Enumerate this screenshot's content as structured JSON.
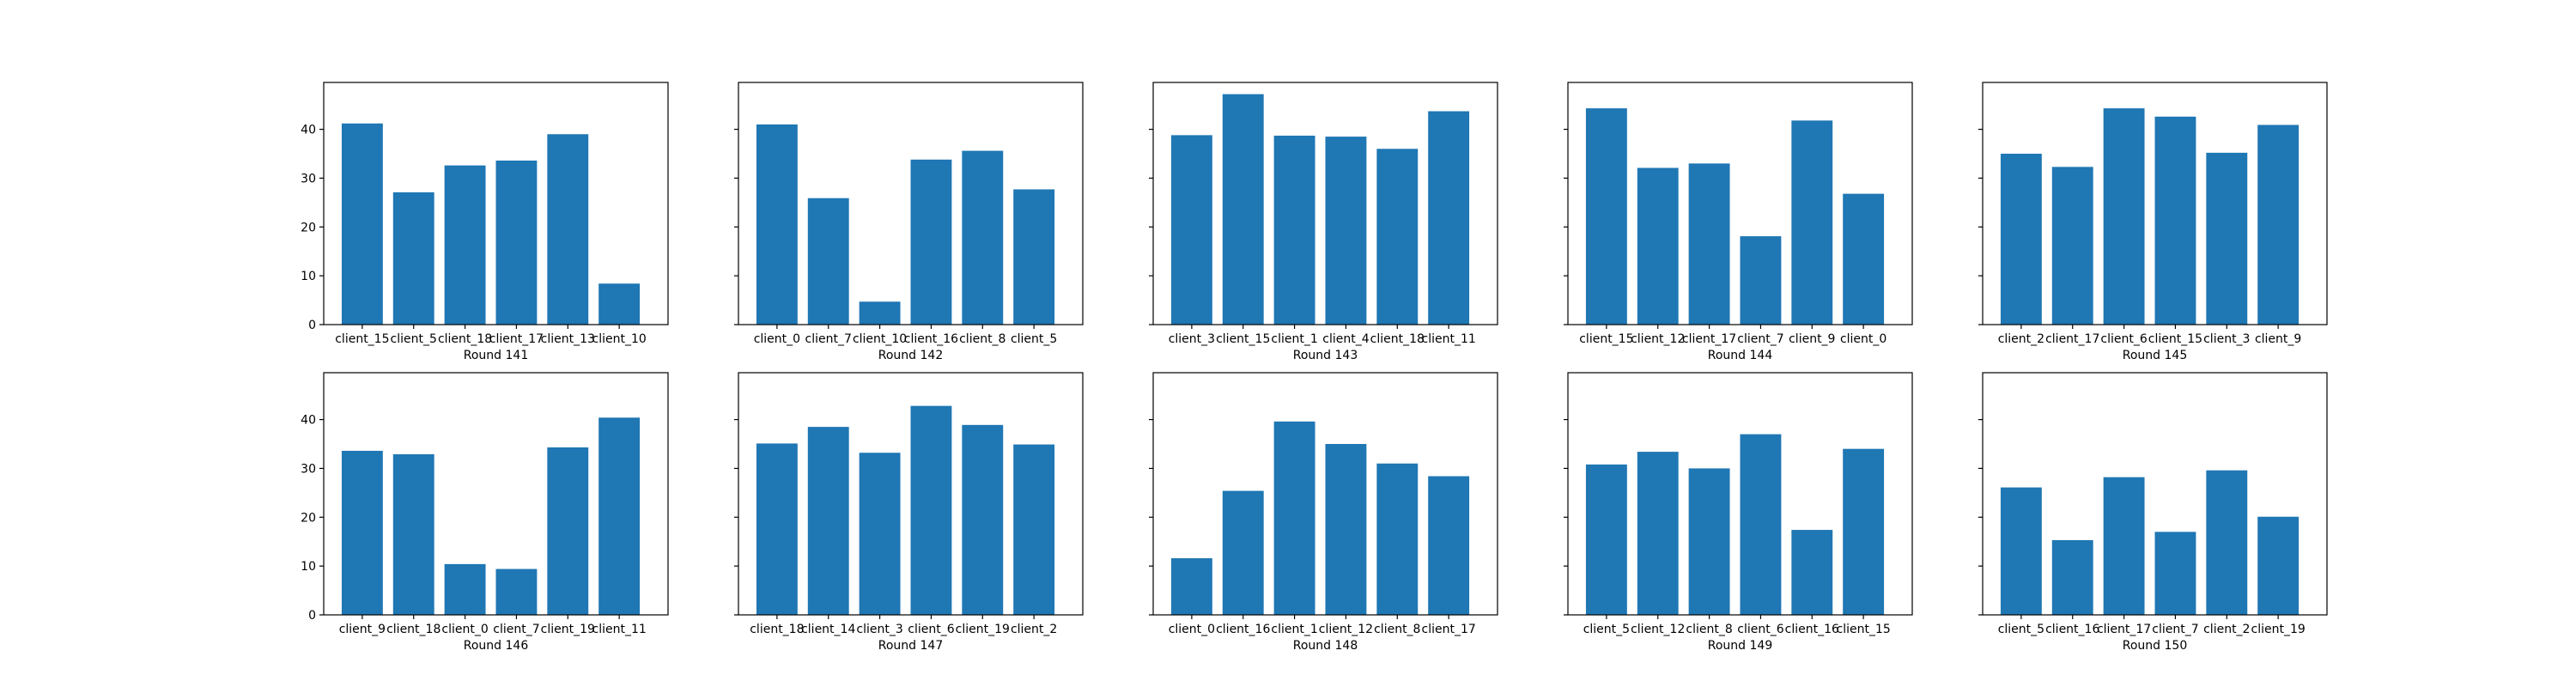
{
  "chart_data": [
    {
      "type": "bar",
      "xlabel": "Round 141",
      "categories": [
        "client_15",
        "client_5",
        "client_18",
        "client_17",
        "client_13",
        "client_10"
      ],
      "values": [
        41.2,
        27.1,
        32.6,
        33.6,
        39.0,
        8.4
      ],
      "ylim": [
        0,
        49.6
      ],
      "yticks": [
        0,
        10,
        20,
        30,
        40
      ],
      "color": "#1f77b4"
    },
    {
      "type": "bar",
      "xlabel": "Round 142",
      "categories": [
        "client_0",
        "client_7",
        "client_10",
        "client_16",
        "client_8",
        "client_5"
      ],
      "values": [
        41.0,
        25.9,
        4.7,
        33.8,
        35.6,
        27.7
      ],
      "ylim": [
        0,
        49.6
      ],
      "yticks": [
        0,
        10,
        20,
        30,
        40
      ],
      "color": "#1f77b4"
    },
    {
      "type": "bar",
      "xlabel": "Round 143",
      "categories": [
        "client_3",
        "client_15",
        "client_1",
        "client_4",
        "client_18",
        "client_11"
      ],
      "values": [
        38.8,
        47.2,
        38.7,
        38.5,
        36.0,
        43.7
      ],
      "ylim": [
        0,
        49.6
      ],
      "yticks": [
        0,
        10,
        20,
        30,
        40
      ],
      "color": "#1f77b4"
    },
    {
      "type": "bar",
      "xlabel": "Round 144",
      "categories": [
        "client_15",
        "client_12",
        "client_17",
        "client_7",
        "client_9",
        "client_0"
      ],
      "values": [
        44.3,
        32.1,
        33.0,
        18.1,
        41.8,
        26.8
      ],
      "ylim": [
        0,
        49.6
      ],
      "yticks": [
        0,
        10,
        20,
        30,
        40
      ],
      "color": "#1f77b4"
    },
    {
      "type": "bar",
      "xlabel": "Round 145",
      "categories": [
        "client_2",
        "client_17",
        "client_6",
        "client_15",
        "client_3",
        "client_9"
      ],
      "values": [
        35.0,
        32.3,
        44.3,
        42.6,
        35.2,
        40.9
      ],
      "ylim": [
        0,
        49.6
      ],
      "yticks": [
        0,
        10,
        20,
        30,
        40
      ],
      "color": "#1f77b4"
    },
    {
      "type": "bar",
      "xlabel": "Round 146",
      "categories": [
        "client_9",
        "client_18",
        "client_0",
        "client_7",
        "client_19",
        "client_11"
      ],
      "values": [
        33.6,
        32.9,
        10.4,
        9.4,
        34.3,
        40.4
      ],
      "ylim": [
        0,
        49.6
      ],
      "yticks": [
        0,
        10,
        20,
        30,
        40
      ],
      "color": "#1f77b4"
    },
    {
      "type": "bar",
      "xlabel": "Round 147",
      "categories": [
        "client_18",
        "client_14",
        "client_3",
        "client_6",
        "client_19",
        "client_2"
      ],
      "values": [
        35.1,
        38.5,
        33.2,
        42.8,
        38.9,
        34.9
      ],
      "ylim": [
        0,
        49.6
      ],
      "yticks": [
        0,
        10,
        20,
        30,
        40
      ],
      "color": "#1f77b4"
    },
    {
      "type": "bar",
      "xlabel": "Round 148",
      "categories": [
        "client_0",
        "client_16",
        "client_1",
        "client_12",
        "client_8",
        "client_17"
      ],
      "values": [
        11.6,
        25.4,
        39.6,
        35.0,
        31.0,
        28.4
      ],
      "ylim": [
        0,
        49.6
      ],
      "yticks": [
        0,
        10,
        20,
        30,
        40
      ],
      "color": "#1f77b4"
    },
    {
      "type": "bar",
      "xlabel": "Round 149",
      "categories": [
        "client_5",
        "client_12",
        "client_8",
        "client_6",
        "client_16",
        "client_15"
      ],
      "values": [
        30.8,
        33.4,
        30.0,
        37.0,
        17.4,
        34.0
      ],
      "ylim": [
        0,
        49.6
      ],
      "yticks": [
        0,
        10,
        20,
        30,
        40
      ],
      "color": "#1f77b4"
    },
    {
      "type": "bar",
      "xlabel": "Round 150",
      "categories": [
        "client_5",
        "client_16",
        "client_17",
        "client_7",
        "client_2",
        "client_19"
      ],
      "values": [
        26.1,
        15.3,
        28.2,
        17.0,
        29.6,
        20.1
      ],
      "ylim": [
        0,
        49.6
      ],
      "yticks": [
        0,
        10,
        20,
        30,
        40
      ],
      "color": "#1f77b4"
    }
  ]
}
